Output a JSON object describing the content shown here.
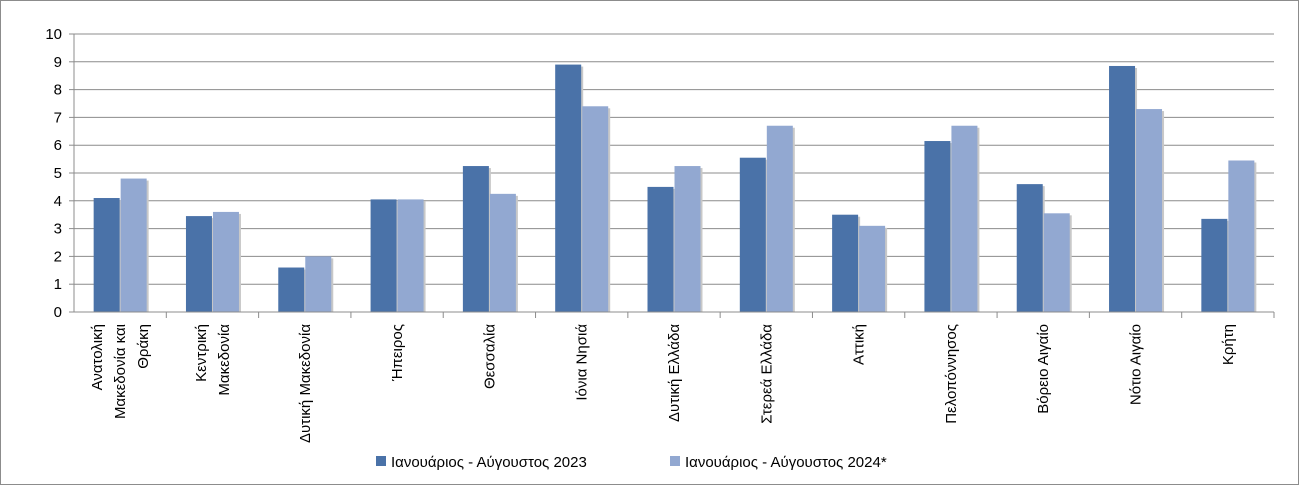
{
  "chart_data": {
    "type": "bar",
    "title": "",
    "xlabel": "",
    "ylabel": "",
    "ylim": [
      0,
      10
    ],
    "yticks": [
      0,
      1,
      2,
      3,
      4,
      5,
      6,
      7,
      8,
      9,
      10
    ],
    "grid": true,
    "legend_position": "bottom",
    "categories": [
      [
        "Ανατολική",
        "Μακεδονία και",
        "Θράκη"
      ],
      [
        "Κεντρική",
        "Μακεδονία"
      ],
      [
        "Δυτική Μακεδονία"
      ],
      [
        "Ήπειρος"
      ],
      [
        "Θεσσαλία"
      ],
      [
        "Ιόνια Νησιά"
      ],
      [
        "Δυτική Ελλάδα"
      ],
      [
        "Στερεά Ελλάδα"
      ],
      [
        "Αττική"
      ],
      [
        "Πελοπόννησος"
      ],
      [
        "Βόρειο Αιγαίο"
      ],
      [
        "Νότιο Αιγαίο"
      ],
      [
        "Κρήτη"
      ]
    ],
    "series": [
      {
        "name": "Ιανουάριος - Αύγουστος 2023",
        "color": "#4a72a8",
        "values": [
          4.1,
          3.45,
          1.6,
          4.05,
          5.25,
          8.9,
          4.5,
          5.55,
          3.5,
          6.15,
          4.6,
          8.85,
          3.35
        ]
      },
      {
        "name": "Ιανουάριος - Αύγουστος 2024*",
        "color": "#92a8d1",
        "values": [
          4.8,
          3.6,
          2.0,
          4.05,
          4.25,
          7.4,
          5.25,
          6.7,
          3.1,
          6.7,
          3.55,
          7.3,
          5.45
        ]
      }
    ]
  }
}
